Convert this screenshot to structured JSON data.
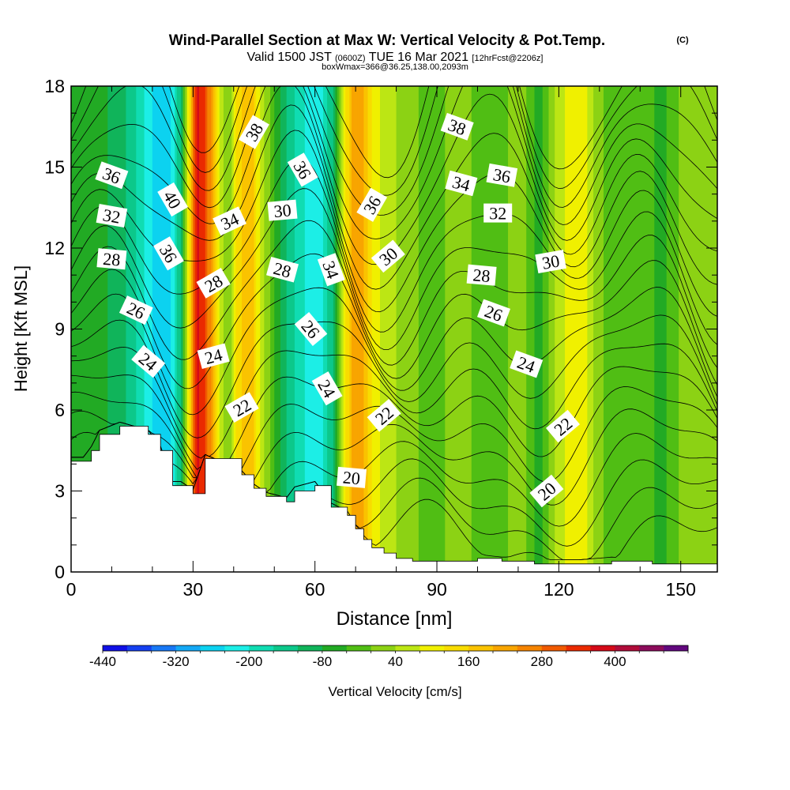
{
  "chart_data": {
    "type": "heatmap",
    "title": "Wind-Parallel Section at Max W: Vertical Velocity & Pot.Temp.",
    "title_mark": "(C)",
    "subtitle_parts": [
      "Valid 1500 JST",
      "(0600Z)",
      "TUE 16 Mar 2021",
      "[12hrFcst@2206z]"
    ],
    "subtitle2": "boxWmax=366@36.25,138.00,2093m",
    "xlabel": "Distance [nm]",
    "ylabel": "Height [Kft MSL]",
    "xlim": [
      0,
      159
    ],
    "ylim": [
      0,
      18
    ],
    "x_ticks": [
      0,
      30,
      60,
      90,
      120,
      150
    ],
    "y_ticks": [
      0,
      3,
      6,
      9,
      12,
      15,
      18
    ],
    "colorbar": {
      "label": "Vertical Velocity [cm/s]",
      "tick_labels": [
        "-440",
        "-320",
        "-200",
        "-80",
        "40",
        "160",
        "280",
        "400"
      ],
      "tick_values": [
        -440,
        -320,
        -200,
        -80,
        40,
        160,
        280,
        400
      ],
      "min": -440,
      "max": 520,
      "step": 40,
      "colors": [
        "#1010e6",
        "#1540f0",
        "#1878f5",
        "#14a8f5",
        "#0cd2f0",
        "#1ceee6",
        "#10dcb2",
        "#0cc88a",
        "#10b45a",
        "#22aa24",
        "#50be14",
        "#8cd214",
        "#bce614",
        "#f0f000",
        "#f8dc00",
        "#fac300",
        "#f8a500",
        "#f58400",
        "#f05a00",
        "#ea2a00",
        "#d40a18",
        "#b00c3a",
        "#8c0c5c",
        "#62087e"
      ]
    },
    "w_field": {
      "description": "vertical velocity (cm/s) along distance, applied over the full column above terrain",
      "x": [
        0,
        6,
        12,
        16,
        20,
        24,
        27,
        29,
        31,
        33,
        35,
        37,
        39,
        41,
        44,
        47,
        50,
        53,
        56,
        59,
        62,
        65,
        68,
        70,
        72,
        74,
        77,
        80,
        84,
        88,
        92,
        96,
        100,
        105,
        110,
        115,
        120,
        125,
        130,
        135,
        140,
        145,
        150,
        155,
        159
      ],
      "w": [
        -40,
        -60,
        -100,
        -160,
        -240,
        -260,
        -120,
        120,
        380,
        320,
        200,
        60,
        0,
        140,
        200,
        60,
        -40,
        -120,
        -180,
        -220,
        -200,
        -100,
        140,
        240,
        200,
        120,
        60,
        40,
        20,
        -40,
        0,
        30,
        -20,
        -40,
        40,
        -60,
        60,
        120,
        10,
        -40,
        0,
        -60,
        10,
        20,
        0
      ]
    },
    "terrain": {
      "x": [
        0,
        3,
        5,
        7,
        12,
        19,
        22,
        25,
        27,
        30,
        33,
        42,
        45,
        48,
        53,
        55,
        60,
        64,
        68,
        70,
        72,
        74,
        77,
        80,
        84,
        100,
        106,
        110,
        114,
        118,
        125,
        133,
        143,
        155,
        159
      ],
      "h": [
        4.1,
        4.1,
        4.5,
        5.1,
        5.4,
        5.1,
        4.5,
        3.2,
        3.2,
        2.9,
        4.2,
        3.6,
        3.1,
        2.8,
        2.6,
        3.0,
        3.2,
        2.4,
        2.1,
        1.6,
        1.2,
        0.9,
        0.7,
        0.5,
        0.4,
        0.5,
        0.4,
        0.4,
        0.3,
        0.3,
        0.3,
        0.4,
        0.3,
        0.3,
        0.3
      ]
    },
    "theta_contours": {
      "variable": "potential temperature",
      "levels": [
        20,
        21,
        22,
        23,
        24,
        25,
        26,
        27,
        28,
        29,
        30,
        31,
        32,
        33,
        34,
        35,
        36,
        37,
        38,
        39,
        40
      ],
      "labeled_levels": [
        20,
        22,
        24,
        26,
        28,
        30,
        32,
        34,
        36,
        38,
        40
      ],
      "labels": [
        {
          "text": "36",
          "x": 10,
          "y": 14.7
        },
        {
          "text": "32",
          "x": 10,
          "y": 13.2
        },
        {
          "text": "28",
          "x": 10,
          "y": 11.6
        },
        {
          "text": "26",
          "x": 16,
          "y": 9.7
        },
        {
          "text": "24",
          "x": 19,
          "y": 7.8
        },
        {
          "text": "40",
          "x": 25,
          "y": 13.8
        },
        {
          "text": "36",
          "x": 24,
          "y": 11.8
        },
        {
          "text": "34",
          "x": 39,
          "y": 13.0
        },
        {
          "text": "28",
          "x": 35,
          "y": 10.7
        },
        {
          "text": "24",
          "x": 35,
          "y": 8.0
        },
        {
          "text": "38",
          "x": 45,
          "y": 16.3
        },
        {
          "text": "30",
          "x": 52,
          "y": 13.4
        },
        {
          "text": "28",
          "x": 52,
          "y": 11.2
        },
        {
          "text": "22",
          "x": 42,
          "y": 6.1
        },
        {
          "text": "36",
          "x": 57,
          "y": 14.9
        },
        {
          "text": "34",
          "x": 64,
          "y": 11.2
        },
        {
          "text": "26",
          "x": 59,
          "y": 9.0
        },
        {
          "text": "24",
          "x": 63,
          "y": 6.8
        },
        {
          "text": "20",
          "x": 69,
          "y": 3.5
        },
        {
          "text": "36",
          "x": 74,
          "y": 13.6
        },
        {
          "text": "30",
          "x": 78,
          "y": 11.7
        },
        {
          "text": "22",
          "x": 77,
          "y": 5.8
        },
        {
          "text": "38",
          "x": 95,
          "y": 16.5
        },
        {
          "text": "34",
          "x": 96,
          "y": 14.4
        },
        {
          "text": "36",
          "x": 106,
          "y": 14.7
        },
        {
          "text": "32",
          "x": 105,
          "y": 13.3
        },
        {
          "text": "28",
          "x": 101,
          "y": 11.0
        },
        {
          "text": "26",
          "x": 104,
          "y": 9.6
        },
        {
          "text": "24",
          "x": 112,
          "y": 7.7
        },
        {
          "text": "30",
          "x": 118,
          "y": 11.5
        },
        {
          "text": "22",
          "x": 121,
          "y": 5.4
        },
        {
          "text": "20",
          "x": 117,
          "y": 3.0
        }
      ]
    }
  }
}
